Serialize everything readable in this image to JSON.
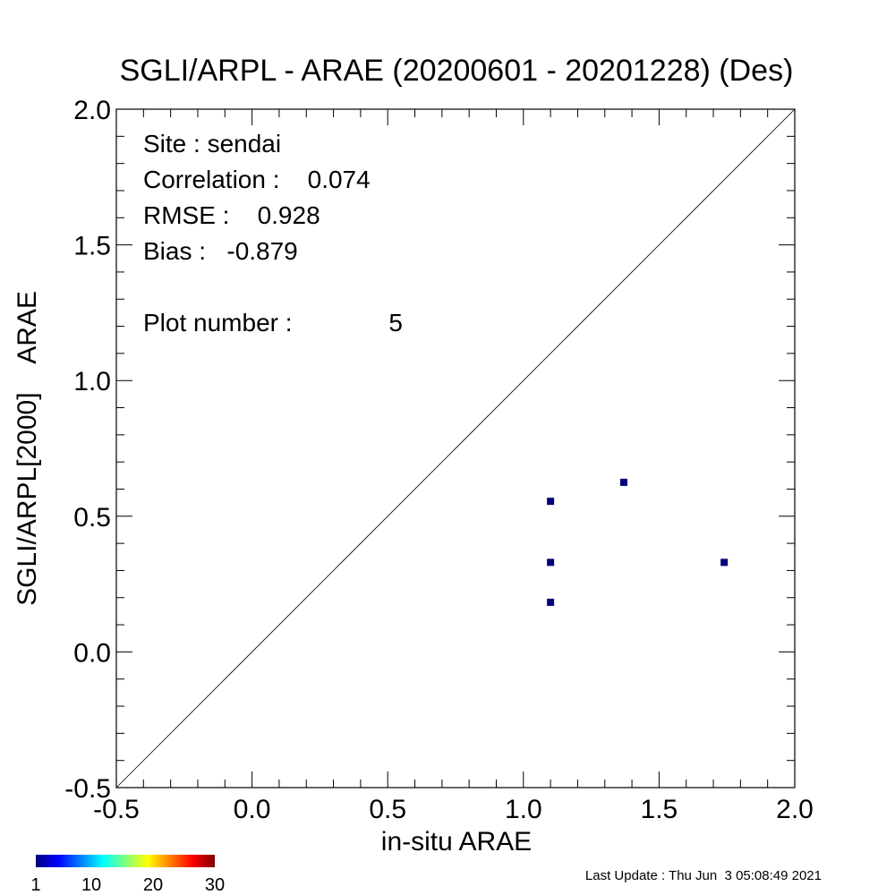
{
  "chart_data": {
    "type": "scatter",
    "title": "SGLI/ARPL - ARAE (20200601 - 20201228) (Des)",
    "xlabel": "in-situ ARAE",
    "ylabel": "SGLI/ARPL[2000]    ARAE",
    "xlim": [
      -0.5,
      2.0
    ],
    "ylim": [
      -0.5,
      2.0
    ],
    "x_ticks": [
      "-0.5",
      "0.0",
      "0.5",
      "1.0",
      "1.5",
      "2.0"
    ],
    "y_ticks": [
      "-0.5",
      "0.0",
      "0.5",
      "1.0",
      "1.5",
      "2.0"
    ],
    "points": [
      {
        "x": 1.1,
        "y": 0.555
      },
      {
        "x": 1.37,
        "y": 0.625
      },
      {
        "x": 1.1,
        "y": 0.33
      },
      {
        "x": 1.74,
        "y": 0.33
      },
      {
        "x": 1.1,
        "y": 0.183
      }
    ],
    "one_to_one_line": true,
    "point_color": "#00007f",
    "stats": {
      "site": "Site : sendai",
      "correlation": "Correlation :    0.074",
      "rmse": "RMSE :    0.928",
      "bias": "Bias :   -0.879",
      "plot_number_label": "Plot number :",
      "plot_number_value": "5"
    },
    "colorbar": {
      "tick_labels": [
        "1",
        "10",
        "20",
        "30"
      ],
      "range": [
        1,
        30
      ],
      "colormap": "jet"
    },
    "last_update": "Last Update : Thu Jun  3 05:08:49 2021"
  }
}
